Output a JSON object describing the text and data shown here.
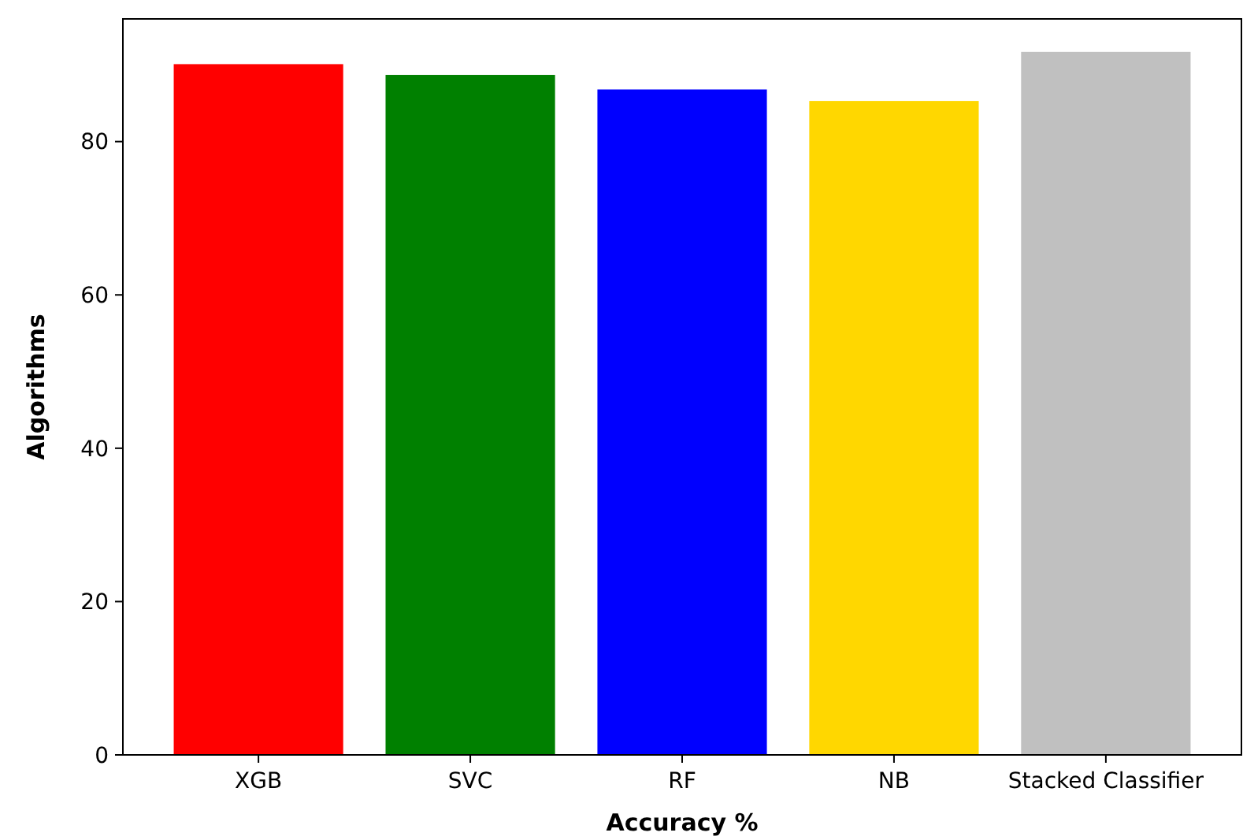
{
  "chart_data": {
    "type": "bar",
    "xlabel": "Accuracy %",
    "ylabel": "Algorithms",
    "categories": [
      "XGB",
      "SVC",
      "RF",
      "NB",
      "Stacked Classifier"
    ],
    "values": [
      90.1,
      88.7,
      86.8,
      85.3,
      91.7
    ],
    "colors": [
      "#ff0000",
      "#008000",
      "#0000ff",
      "#ffd700",
      "#c0c0c0"
    ],
    "ylim": [
      0,
      96
    ],
    "yticks": [
      0,
      20,
      40,
      60,
      80
    ],
    "grid": false
  }
}
